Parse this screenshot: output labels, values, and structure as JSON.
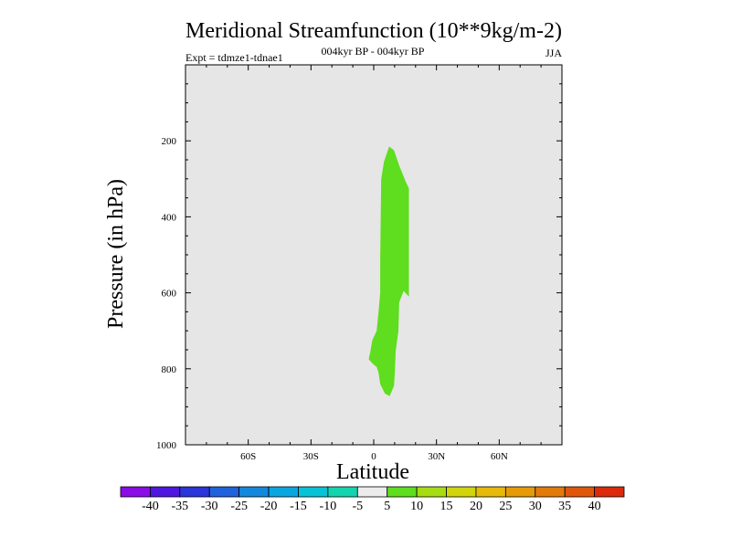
{
  "chart_data": {
    "type": "contour",
    "title": "Meridional Streamfunction (10**9kg/m-2)",
    "subtitle": "004kyr BP - 004kyr BP",
    "left_label": "Expt = tdmze1-tdnae1",
    "right_label": "JJA",
    "xlabel": "Latitude",
    "ylabel": "Pressure (in hPa)",
    "xlim": [
      -90,
      90
    ],
    "ylim": [
      0,
      1000
    ],
    "y_inverted": true,
    "x_ticks": [
      {
        "value": -60,
        "label": "60S"
      },
      {
        "value": -30,
        "label": "30S"
      },
      {
        "value": 0,
        "label": "0"
      },
      {
        "value": 30,
        "label": "30N"
      },
      {
        "value": 60,
        "label": "60N"
      }
    ],
    "y_ticks": [
      {
        "value": 200,
        "label": "200"
      },
      {
        "value": 400,
        "label": "400"
      },
      {
        "value": 600,
        "label": "600"
      },
      {
        "value": 800,
        "label": "800"
      },
      {
        "value": 1000,
        "label": "1000"
      }
    ],
    "background_color": "#e6e6e6",
    "filled_regions": [
      {
        "name": "5 to 10 band",
        "range": [
          5,
          10
        ],
        "color": "#5fdd1f",
        "polygon": [
          [
            3.1,
            510
          ],
          [
            3.6,
            300
          ],
          [
            4.9,
            255
          ],
          [
            7.4,
            215
          ],
          [
            9.7,
            225
          ],
          [
            12.2,
            265
          ],
          [
            15.5,
            310
          ],
          [
            16.8,
            325
          ],
          [
            16.8,
            610
          ],
          [
            14.3,
            595
          ],
          [
            12.2,
            625
          ],
          [
            11.8,
            700
          ],
          [
            10.5,
            755
          ],
          [
            10.1,
            810
          ],
          [
            9.7,
            845
          ],
          [
            7.6,
            872
          ],
          [
            5.3,
            865
          ],
          [
            3.1,
            840
          ],
          [
            2.3,
            810
          ],
          [
            1.4,
            795
          ],
          [
            0.2,
            790
          ],
          [
            -0.7,
            785
          ],
          [
            -2.4,
            775
          ],
          [
            -1.6,
            755
          ],
          [
            -0.7,
            725
          ],
          [
            1.4,
            700
          ],
          [
            2.3,
            650
          ],
          [
            3.1,
            600
          ]
        ]
      }
    ],
    "colorbar": {
      "labels": [
        "-40",
        "-35",
        "-30",
        "-25",
        "-20",
        "-15",
        "-10",
        "-5",
        "5",
        "10",
        "15",
        "20",
        "25",
        "30",
        "35",
        "40"
      ],
      "colors": [
        "#8a0ce6",
        "#4f16e0",
        "#2a35da",
        "#1f62dc",
        "#1488dd",
        "#0aa6df",
        "#08c2d6",
        "#14d4b0",
        "#ececec",
        "#5fdd1f",
        "#a8dc12",
        "#d2d40c",
        "#e6b90a",
        "#e59a08",
        "#e27a0a",
        "#e0570c",
        "#dc2a0c"
      ]
    }
  }
}
